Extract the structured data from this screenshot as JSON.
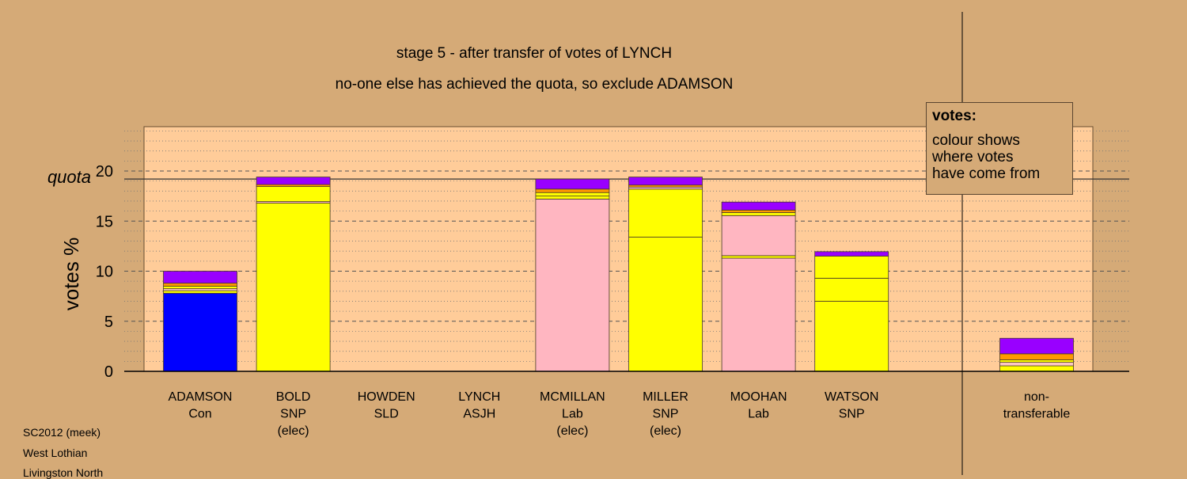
{
  "chart_data": {
    "type": "bar",
    "stacked": true,
    "title": "stage 5 - after transfer of votes of LYNCH",
    "subtitle": "no-one else has achieved the quota, so exclude ADAMSON",
    "ylabel": "votes %",
    "ylim": [
      0,
      24
    ],
    "yticks": [
      0,
      5,
      10,
      15,
      20
    ],
    "quota_label": "quota",
    "quota_value": 19.2,
    "categories": [
      {
        "name": "ADAMSON",
        "party": "Con",
        "note": ""
      },
      {
        "name": "BOLD",
        "party": "SNP",
        "note": "(elec)"
      },
      {
        "name": "HOWDEN",
        "party": "SLD",
        "note": ""
      },
      {
        "name": "LYNCH",
        "party": "ASJH",
        "note": ""
      },
      {
        "name": "MCMILLAN",
        "party": "Lab",
        "note": "(elec)"
      },
      {
        "name": "MILLER",
        "party": "SNP",
        "note": "(elec)"
      },
      {
        "name": "MOOHAN",
        "party": "Lab",
        "note": ""
      },
      {
        "name": "WATSON",
        "party": "SNP",
        "note": ""
      }
    ],
    "nontransferable": {
      "label_line1": "non-",
      "label_line2": "transferable"
    },
    "stacks": [
      [
        {
          "value": 7.8,
          "color": "#0000ff"
        },
        {
          "value": 0.25,
          "color": "#ffff00"
        },
        {
          "value": 0.2,
          "color": "#ffc8c8"
        },
        {
          "value": 0.25,
          "color": "#ffff00"
        },
        {
          "value": 0.3,
          "color": "#ff9900"
        },
        {
          "value": 1.2,
          "color": "#9900ff"
        }
      ],
      [
        {
          "value": 16.8,
          "color": "#ffff00"
        },
        {
          "value": 0.15,
          "color": "#ffb6c1"
        },
        {
          "value": 1.5,
          "color": "#ffff00"
        },
        {
          "value": 0.2,
          "color": "#ff9900"
        },
        {
          "value": 0.75,
          "color": "#9900ff"
        }
      ],
      [],
      [],
      [
        {
          "value": 17.2,
          "color": "#ffb6c1"
        },
        {
          "value": 0.3,
          "color": "#ffff00"
        },
        {
          "value": 0.35,
          "color": "#ffff00"
        },
        {
          "value": 0.35,
          "color": "#ff9900"
        },
        {
          "value": 1.0,
          "color": "#9900ff"
        }
      ],
      [
        {
          "value": 13.4,
          "color": "#ffff00"
        },
        {
          "value": 4.8,
          "color": "#ffff00"
        },
        {
          "value": 0.2,
          "color": "#ffc8c8"
        },
        {
          "value": 0.2,
          "color": "#ff9900"
        },
        {
          "value": 0.8,
          "color": "#9900ff"
        }
      ],
      [
        {
          "value": 11.3,
          "color": "#ffb6c1"
        },
        {
          "value": 0.25,
          "color": "#ffff00"
        },
        {
          "value": 4.0,
          "color": "#ffb6c1"
        },
        {
          "value": 0.3,
          "color": "#ffff00"
        },
        {
          "value": 0.25,
          "color": "#ff9900"
        },
        {
          "value": 0.8,
          "color": "#9900ff"
        }
      ],
      [
        {
          "value": 7.0,
          "color": "#ffff00"
        },
        {
          "value": 2.3,
          "color": "#ffff00"
        },
        {
          "value": 2.2,
          "color": "#ffff00"
        },
        {
          "value": 0.45,
          "color": "#9900ff"
        }
      ]
    ],
    "nontransferable_stack": [
      {
        "value": 0.55,
        "color": "#ffff00"
      },
      {
        "value": 0.35,
        "color": "#ffc8c8"
      },
      {
        "value": 0.25,
        "color": "#ffff00"
      },
      {
        "value": 0.6,
        "color": "#ff9900"
      },
      {
        "value": 1.55,
        "color": "#9900ff"
      }
    ],
    "colors": {
      "background": "#d5aa77",
      "plot_background": "#ffcc99",
      "quota_line": "#333333"
    }
  },
  "legend": {
    "title": "votes:",
    "lines": [
      "colour shows",
      "where votes",
      "have come from"
    ]
  },
  "info": [
    "SC2012 (meek)",
    "West Lothian",
    "Livingston North"
  ]
}
